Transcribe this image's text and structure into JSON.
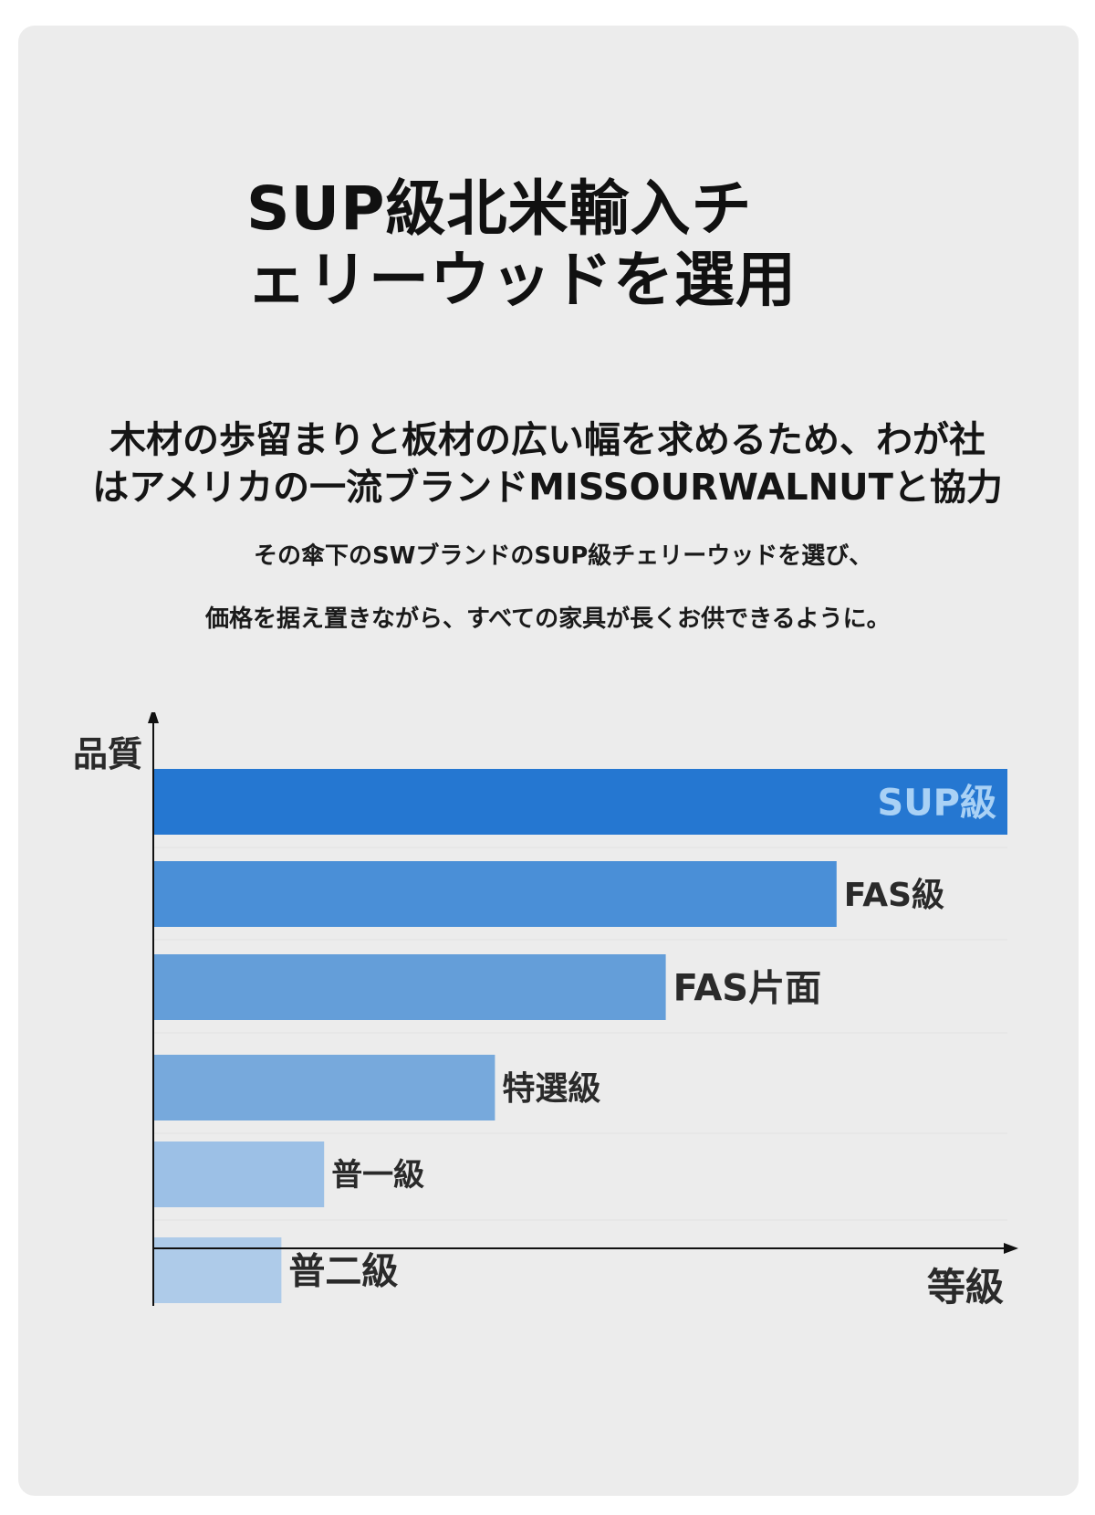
{
  "heading": {
    "line1": "SUP級北米輸入チ",
    "line2": "ェリーウッドを選用"
  },
  "lead": {
    "line1": "木材の歩留まりと板材の広い幅を求めるため、わが社",
    "line2": "はアメリカの一流ブランドMISSOURWALNUTと協力"
  },
  "sub": {
    "line1": "その傘下のSWブランドのSUP級チェリーウッドを選び、",
    "line2": "価格を据え置きながら、すべての家具が長くお供できるように。"
  },
  "chart_data": {
    "type": "bar",
    "orientation": "horizontal",
    "ylabel": "品質",
    "xlabel": "等級",
    "categories": [
      "SUP級",
      "FAS級",
      "FAS片面",
      "特選級",
      "普一級",
      "普二級"
    ],
    "values": [
      100,
      80,
      60,
      40,
      20,
      15
    ],
    "colors": [
      "#2577d1",
      "#4a8fd7",
      "#649ed9",
      "#77a9dc",
      "#9cc0e6",
      "#aecbe9"
    ],
    "label_colors": [
      "#a9d1f5",
      "#2a2a2a",
      "#2a2a2a",
      "#2a2a2a",
      "#2a2a2a",
      "#2a2a2a"
    ],
    "label_inside": [
      true,
      false,
      false,
      false,
      false,
      false
    ],
    "xlim": [
      0,
      100
    ],
    "axis_color": "#111111"
  }
}
